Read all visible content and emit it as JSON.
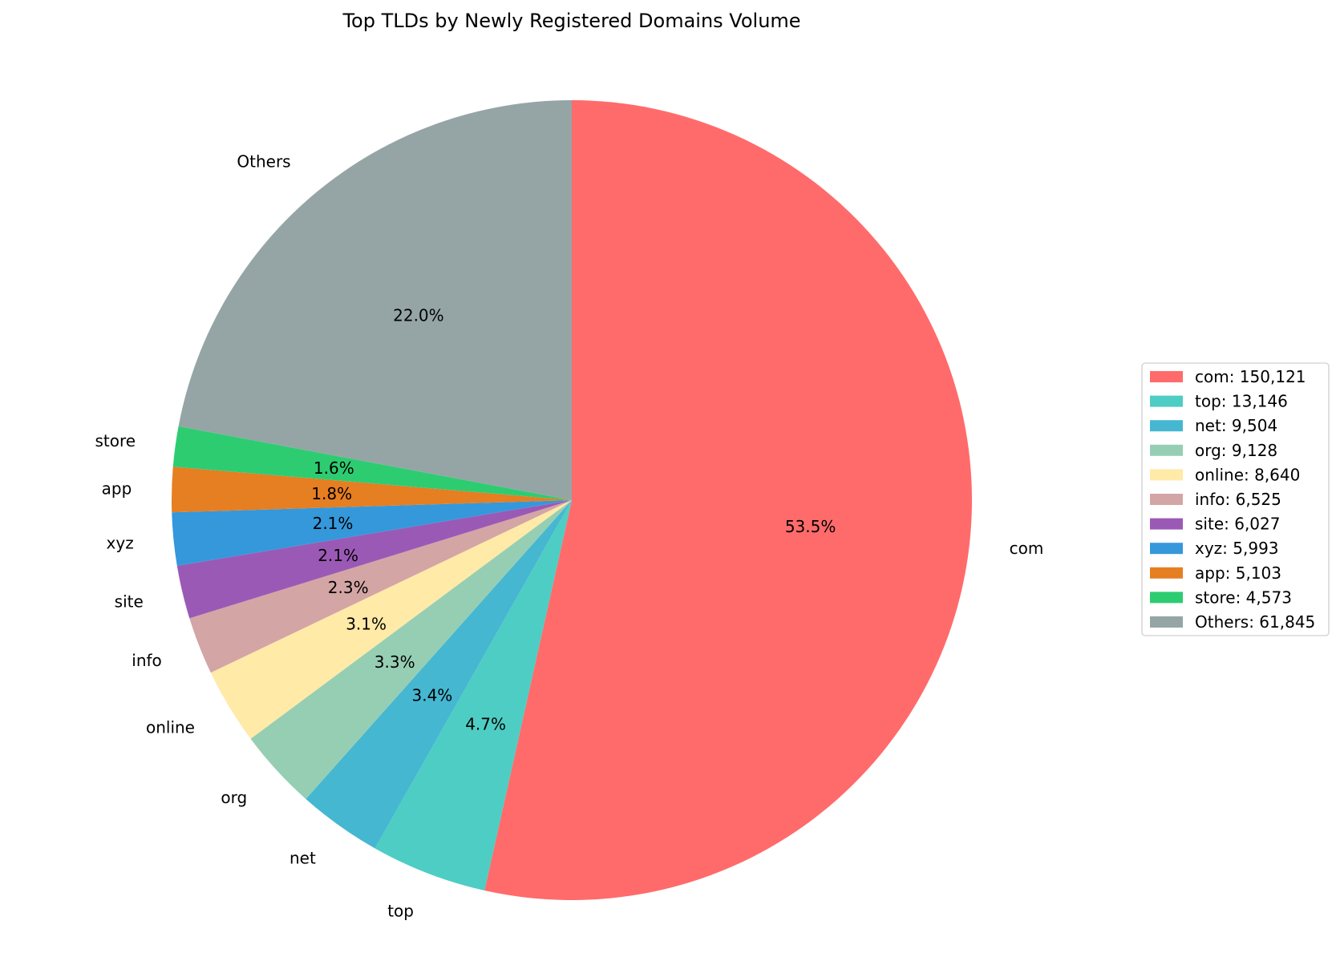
{
  "chart_data": {
    "type": "pie",
    "title": "Top TLDs by Newly Registered Domains Volume",
    "start_angle_deg": 90,
    "direction": "clockwise",
    "legend_placement": "center-right",
    "slices": [
      {
        "label": "com",
        "value": 150121,
        "percent_label": "53.5%",
        "legend_label": "com: 150,121",
        "color": "#FF6B6B"
      },
      {
        "label": "top",
        "value": 13146,
        "percent_label": "4.7%",
        "legend_label": "top: 13,146",
        "color": "#4ECDC4"
      },
      {
        "label": "net",
        "value": 9504,
        "percent_label": "3.4%",
        "legend_label": "net: 9,504",
        "color": "#45B7D1"
      },
      {
        "label": "org",
        "value": 9128,
        "percent_label": "3.3%",
        "legend_label": "org: 9,128",
        "color": "#96CEB4"
      },
      {
        "label": "online",
        "value": 8640,
        "percent_label": "3.1%",
        "legend_label": "online: 8,640",
        "color": "#FFEAA7"
      },
      {
        "label": "info",
        "value": 6525,
        "percent_label": "2.3%",
        "legend_label": "info: 6,525",
        "color": "#D4A5A5"
      },
      {
        "label": "site",
        "value": 6027,
        "percent_label": "2.1%",
        "legend_label": "site: 6,027",
        "color": "#9B59B6"
      },
      {
        "label": "xyz",
        "value": 5993,
        "percent_label": "2.1%",
        "legend_label": "xyz: 5,993",
        "color": "#3498DB"
      },
      {
        "label": "app",
        "value": 5103,
        "percent_label": "1.8%",
        "legend_label": "app: 5,103",
        "color": "#E67E22"
      },
      {
        "label": "store",
        "value": 4573,
        "percent_label": "1.6%",
        "legend_label": "store: 4,573",
        "color": "#2ECC71"
      },
      {
        "label": "Others",
        "value": 61845,
        "percent_label": "22.0%",
        "legend_label": "Others: 61,845",
        "color": "#95A5A6"
      }
    ]
  }
}
